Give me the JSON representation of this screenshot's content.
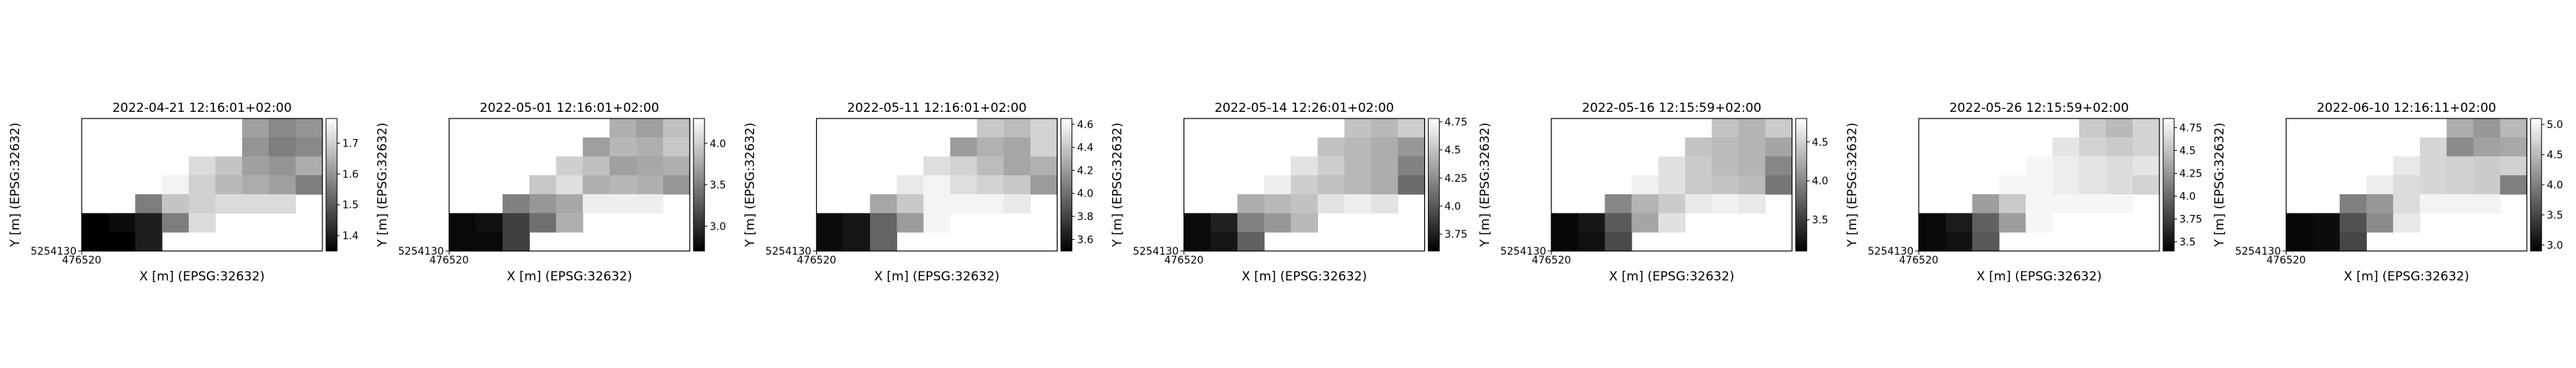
{
  "figure": {
    "colormap": [
      "#000000",
      "#ffffff"
    ],
    "border_color": "#000000",
    "background": "#ffffff"
  },
  "chart_data": [
    {
      "type": "heatmap",
      "title": "2022-04-21 12:16:01+02:00",
      "xlabel": "X [m] (EPSG:32632)",
      "ylabel": "Y [m] (EPSG:32632)",
      "x_tick_label": "476520",
      "y_tick_label": "5254130",
      "colorbar": {
        "min": 1.35,
        "max": 1.78,
        "ticks": [
          1.4,
          1.5,
          1.6,
          1.7
        ]
      },
      "grid": [
        [
          null,
          null,
          null,
          null,
          null,
          null,
          1.62,
          1.58,
          1.6
        ],
        [
          null,
          null,
          null,
          null,
          null,
          null,
          1.6,
          1.56,
          1.58
        ],
        [
          null,
          null,
          null,
          null,
          1.72,
          1.68,
          1.62,
          1.6,
          1.64
        ],
        [
          null,
          null,
          null,
          1.76,
          1.7,
          1.66,
          1.64,
          1.62,
          1.56
        ],
        [
          null,
          null,
          1.56,
          1.68,
          1.7,
          1.72,
          1.72,
          1.72,
          null
        ],
        [
          1.35,
          1.37,
          1.4,
          1.56,
          1.72,
          null,
          null,
          null,
          null
        ],
        [
          1.35,
          1.35,
          1.4,
          null,
          null,
          null,
          null,
          null,
          null
        ]
      ]
    },
    {
      "type": "heatmap",
      "title": "2022-05-01 12:16:01+02:00",
      "xlabel": "X [m] (EPSG:32632)",
      "ylabel": "Y [m] (EPSG:32632)",
      "x_tick_label": "476520",
      "y_tick_label": "5254130",
      "colorbar": {
        "min": 2.7,
        "max": 4.3,
        "ticks": [
          3.0,
          3.5,
          4.0
        ]
      },
      "grid": [
        [
          null,
          null,
          null,
          null,
          null,
          null,
          3.8,
          3.7,
          3.9
        ],
        [
          null,
          null,
          null,
          null,
          null,
          3.7,
          3.85,
          3.8,
          3.95
        ],
        [
          null,
          null,
          null,
          null,
          4.0,
          3.9,
          3.7,
          3.75,
          3.8
        ],
        [
          null,
          null,
          null,
          3.95,
          4.1,
          3.8,
          3.85,
          3.8,
          3.65
        ],
        [
          null,
          null,
          3.5,
          3.65,
          3.75,
          4.2,
          4.2,
          4.2,
          null
        ],
        [
          2.75,
          2.8,
          3.1,
          3.4,
          3.8,
          null,
          null,
          null,
          null
        ],
        [
          2.75,
          2.75,
          3.1,
          null,
          null,
          null,
          null,
          null,
          null
        ]
      ]
    },
    {
      "type": "heatmap",
      "title": "2022-05-11 12:16:01+02:00",
      "xlabel": "X [m] (EPSG:32632)",
      "ylabel": "Y [m] (EPSG:32632)",
      "x_tick_label": "476520",
      "y_tick_label": "5254130",
      "colorbar": {
        "min": 3.5,
        "max": 4.65,
        "ticks": [
          3.6,
          3.8,
          4.0,
          4.2,
          4.4,
          4.6
        ]
      },
      "grid": [
        [
          null,
          null,
          null,
          null,
          null,
          null,
          4.4,
          4.35,
          4.45
        ],
        [
          null,
          null,
          null,
          null,
          null,
          4.2,
          4.3,
          4.25,
          4.45
        ],
        [
          null,
          null,
          null,
          null,
          4.5,
          4.45,
          4.35,
          4.25,
          4.3
        ],
        [
          null,
          null,
          null,
          4.55,
          4.6,
          4.5,
          4.45,
          4.4,
          4.2
        ],
        [
          null,
          null,
          4.25,
          4.4,
          4.6,
          4.6,
          4.6,
          4.55,
          null
        ],
        [
          3.55,
          3.6,
          3.95,
          4.2,
          4.6,
          null,
          null,
          null,
          null
        ],
        [
          3.55,
          3.6,
          3.95,
          null,
          null,
          null,
          null,
          null,
          null
        ]
      ]
    },
    {
      "type": "heatmap",
      "title": "2022-05-14 12:26:01+02:00",
      "xlabel": "X [m] (EPSG:32632)",
      "ylabel": "Y [m] (EPSG:32632)",
      "x_tick_label": "476520",
      "y_tick_label": "5254130",
      "colorbar": {
        "min": 3.6,
        "max": 4.78,
        "ticks": [
          3.75,
          4.0,
          4.25,
          4.5,
          4.75
        ]
      },
      "grid": [
        [
          null,
          null,
          null,
          null,
          null,
          null,
          4.5,
          4.45,
          4.55
        ],
        [
          null,
          null,
          null,
          null,
          null,
          4.5,
          4.45,
          4.4,
          4.3
        ],
        [
          null,
          null,
          null,
          null,
          4.65,
          4.55,
          4.45,
          4.4,
          4.2
        ],
        [
          null,
          null,
          null,
          4.7,
          4.55,
          4.5,
          4.45,
          4.4,
          4.1
        ],
        [
          null,
          null,
          4.4,
          4.45,
          4.5,
          4.65,
          4.7,
          4.65,
          null
        ],
        [
          3.65,
          3.75,
          4.2,
          4.3,
          4.45,
          null,
          null,
          null,
          null
        ],
        [
          3.65,
          3.7,
          4.05,
          null,
          null,
          null,
          null,
          null,
          null
        ]
      ]
    },
    {
      "type": "heatmap",
      "title": "2022-05-16 12:15:59+02:00",
      "xlabel": "X [m] (EPSG:32632)",
      "ylabel": "Y [m] (EPSG:32632)",
      "x_tick_label": "476520",
      "y_tick_label": "5254130",
      "colorbar": {
        "min": 3.1,
        "max": 4.8,
        "ticks": [
          3.5,
          4.0,
          4.5
        ]
      },
      "grid": [
        [
          null,
          null,
          null,
          null,
          null,
          null,
          4.4,
          4.3,
          4.45
        ],
        [
          null,
          null,
          null,
          null,
          null,
          4.4,
          4.35,
          4.3,
          4.2
        ],
        [
          null,
          null,
          null,
          null,
          4.6,
          4.45,
          4.35,
          4.3,
          4.0
        ],
        [
          null,
          null,
          null,
          4.7,
          4.6,
          4.45,
          4.4,
          4.35,
          3.9
        ],
        [
          null,
          null,
          4.0,
          4.3,
          4.45,
          4.65,
          4.7,
          4.65,
          null
        ],
        [
          3.15,
          3.25,
          3.7,
          4.2,
          4.6,
          null,
          null,
          null,
          null
        ],
        [
          3.15,
          3.2,
          3.6,
          null,
          null,
          null,
          null,
          null,
          null
        ]
      ]
    },
    {
      "type": "heatmap",
      "title": "2022-05-26 12:15:59+02:00",
      "xlabel": "X [m] (EPSG:32632)",
      "ylabel": "Y [m] (EPSG:32632)",
      "x_tick_label": "476520",
      "y_tick_label": "5254130",
      "colorbar": {
        "min": 3.4,
        "max": 4.85,
        "ticks": [
          3.5,
          3.75,
          4.0,
          4.25,
          4.5,
          4.75
        ]
      },
      "grid": [
        [
          null,
          null,
          null,
          null,
          null,
          null,
          4.55,
          4.45,
          4.6
        ],
        [
          null,
          null,
          null,
          null,
          null,
          4.7,
          4.6,
          4.55,
          4.6
        ],
        [
          null,
          null,
          null,
          null,
          4.8,
          4.75,
          4.7,
          4.65,
          4.7
        ],
        [
          null,
          null,
          null,
          4.8,
          4.8,
          4.75,
          4.7,
          4.65,
          4.6
        ],
        [
          null,
          null,
          4.3,
          4.55,
          4.8,
          4.8,
          4.8,
          4.8,
          null
        ],
        [
          3.45,
          3.55,
          3.95,
          4.3,
          4.8,
          null,
          null,
          null,
          null
        ],
        [
          3.45,
          3.5,
          3.9,
          null,
          null,
          null,
          null,
          null,
          null
        ]
      ]
    },
    {
      "type": "heatmap",
      "title": "2022-06-10 12:16:11+02:00",
      "xlabel": "X [m] (EPSG:32632)",
      "ylabel": "Y [m] (EPSG:32632)",
      "x_tick_label": "476520",
      "y_tick_label": "5254130",
      "colorbar": {
        "min": 2.9,
        "max": 5.1,
        "ticks": [
          3.0,
          3.5,
          4.0,
          4.5,
          5.0
        ]
      },
      "grid": [
        [
          null,
          null,
          null,
          null,
          null,
          null,
          4.4,
          4.2,
          4.5
        ],
        [
          null,
          null,
          null,
          null,
          null,
          4.75,
          4.1,
          4.3,
          4.35
        ],
        [
          null,
          null,
          null,
          null,
          4.9,
          4.75,
          4.7,
          4.65,
          4.7
        ],
        [
          null,
          null,
          null,
          4.95,
          4.8,
          4.75,
          4.7,
          4.65,
          4.0
        ],
        [
          null,
          null,
          4.0,
          4.2,
          4.8,
          5.0,
          5.0,
          5.0,
          null
        ],
        [
          2.95,
          3.0,
          3.6,
          4.1,
          4.9,
          null,
          null,
          null,
          null
        ],
        [
          2.95,
          3.0,
          3.5,
          null,
          null,
          null,
          null,
          null,
          null
        ]
      ]
    }
  ]
}
